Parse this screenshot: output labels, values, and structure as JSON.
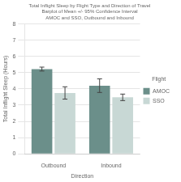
{
  "chart_data": {
    "type": "bar",
    "title": "Total Inflight Sleep by Flight Type and Direction of Travel\nBarplot of Mean +/- 95% Confidence Interval\nAMOC and SSO, Outbound and Inbound",
    "xlabel": "Direction",
    "ylabel": "Total Inflight Sleep (Hours)",
    "categories": [
      "Outbound",
      "Inbound"
    ],
    "series": [
      {
        "name": "AMOC",
        "color": "#6b8f8a",
        "values": [
          5.22,
          4.2
        ],
        "error": [
          [
            0.12,
            0.12
          ],
          [
            0.42,
            0.42
          ]
        ]
      },
      {
        "name": "SSO",
        "color": "#c8d8d5",
        "values": [
          3.75,
          3.48
        ],
        "error": [
          [
            0.38,
            0.38
          ],
          [
            0.2,
            0.2
          ]
        ]
      }
    ],
    "legend": "right",
    "legend_title": "Flight",
    "ylim": [
      0,
      8
    ],
    "yticks": [
      0,
      1,
      2,
      3,
      4,
      5,
      6,
      7,
      8
    ],
    "grid": "y"
  }
}
